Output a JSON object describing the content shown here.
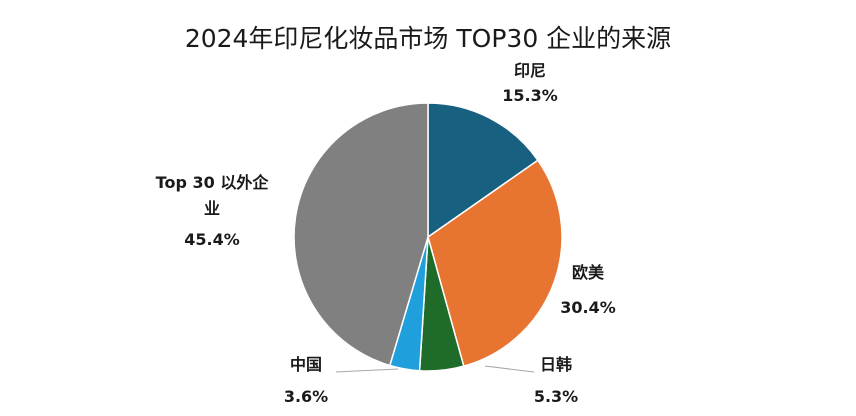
{
  "chart_data": {
    "type": "pie",
    "title": "2024年印尼化妆品市场 TOP30 企业的来源",
    "slices": [
      {
        "label": "印尼",
        "value": 15.3,
        "value_label": "15.3%",
        "color": "#17607f"
      },
      {
        "label": "欧美",
        "value": 30.4,
        "value_label": "30.4%",
        "color": "#e87432"
      },
      {
        "label": "日韩",
        "value": 5.3,
        "value_label": "5.3%",
        "color": "#1e6b2a"
      },
      {
        "label": "中国",
        "value": 3.6,
        "value_label": "3.6%",
        "color": "#1fa0dc"
      },
      {
        "label": "Top 30 以外企业",
        "value": 45.4,
        "value_label": "45.4%",
        "color": "#808080"
      }
    ],
    "legend": "none",
    "start_angle": "12 o'clock",
    "direction": "clockwise"
  }
}
